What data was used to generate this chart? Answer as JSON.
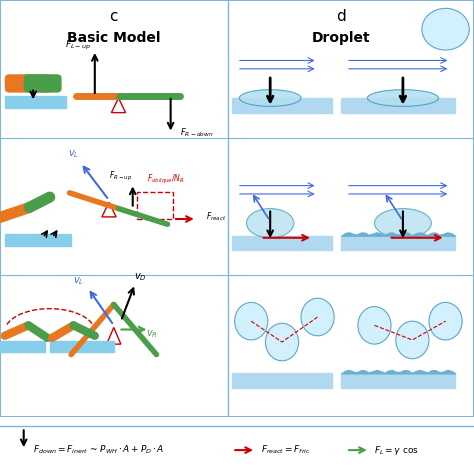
{
  "bg_color": "#f0f8ff",
  "grid_color": "#add8e6",
  "title_c": "c",
  "title_d": "d",
  "subtitle_c": "Basic Model",
  "subtitle_d": "Droplet",
  "orange_color": "#e87722",
  "green_color": "#4a9e4a",
  "blue_color": "#4169e1",
  "red_color": "#cc0000",
  "black_color": "#000000",
  "light_blue": "#87ceeb",
  "sky_blue": "#b0d8f0",
  "footer_color2": "#cc0000",
  "footer_color3": "#4a9e4a"
}
